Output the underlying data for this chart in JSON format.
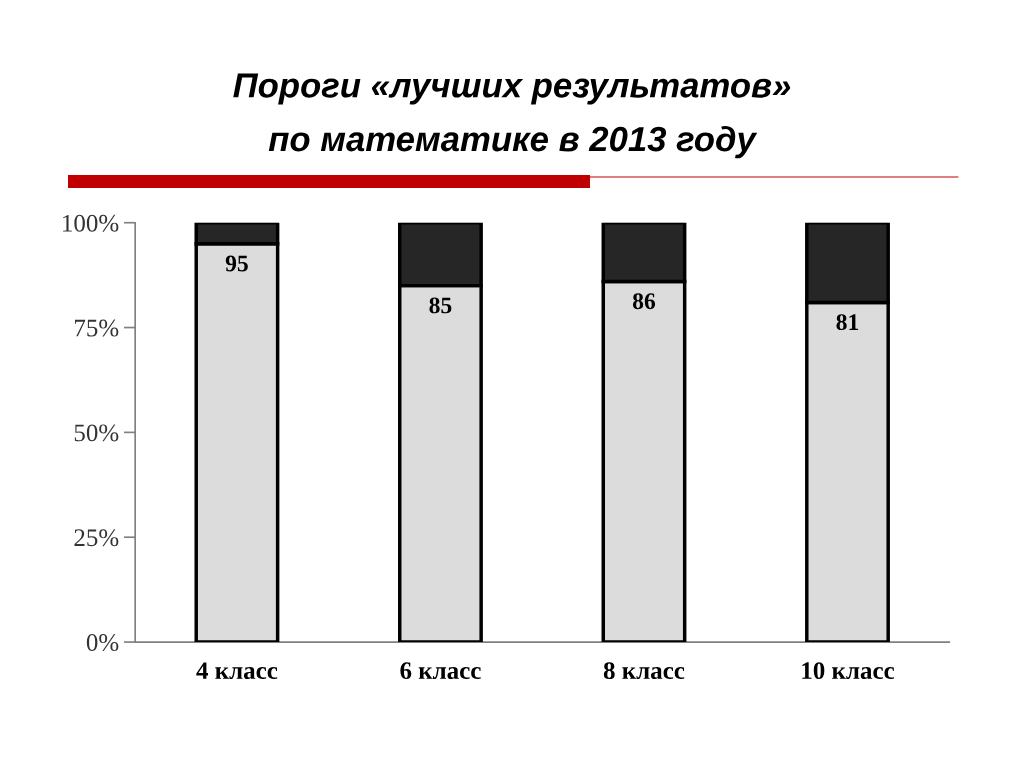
{
  "chart_data": {
    "type": "bar",
    "title": "Пороги «лучших результатов»\nпо математике в 2013 году",
    "categories": [
      "4 класс",
      "6 класс",
      "8 класс",
      "10 класс"
    ],
    "stacked": true,
    "series": [
      {
        "color": "#dcdcdc",
        "values": [
          95,
          85,
          86,
          81
        ],
        "value_labels": [
          "95",
          "85",
          "86",
          "81"
        ]
      },
      {
        "color": "#262626",
        "values": [
          5,
          15,
          14,
          19
        ]
      }
    ],
    "ylim": [
      0,
      100
    ],
    "yticks": [
      {
        "value": 0,
        "label": "0%"
      },
      {
        "value": 25,
        "label": "25%"
      },
      {
        "value": 50,
        "label": "50%"
      },
      {
        "value": 75,
        "label": "75%"
      },
      {
        "value": 100,
        "label": "100%"
      }
    ],
    "grid": false
  }
}
